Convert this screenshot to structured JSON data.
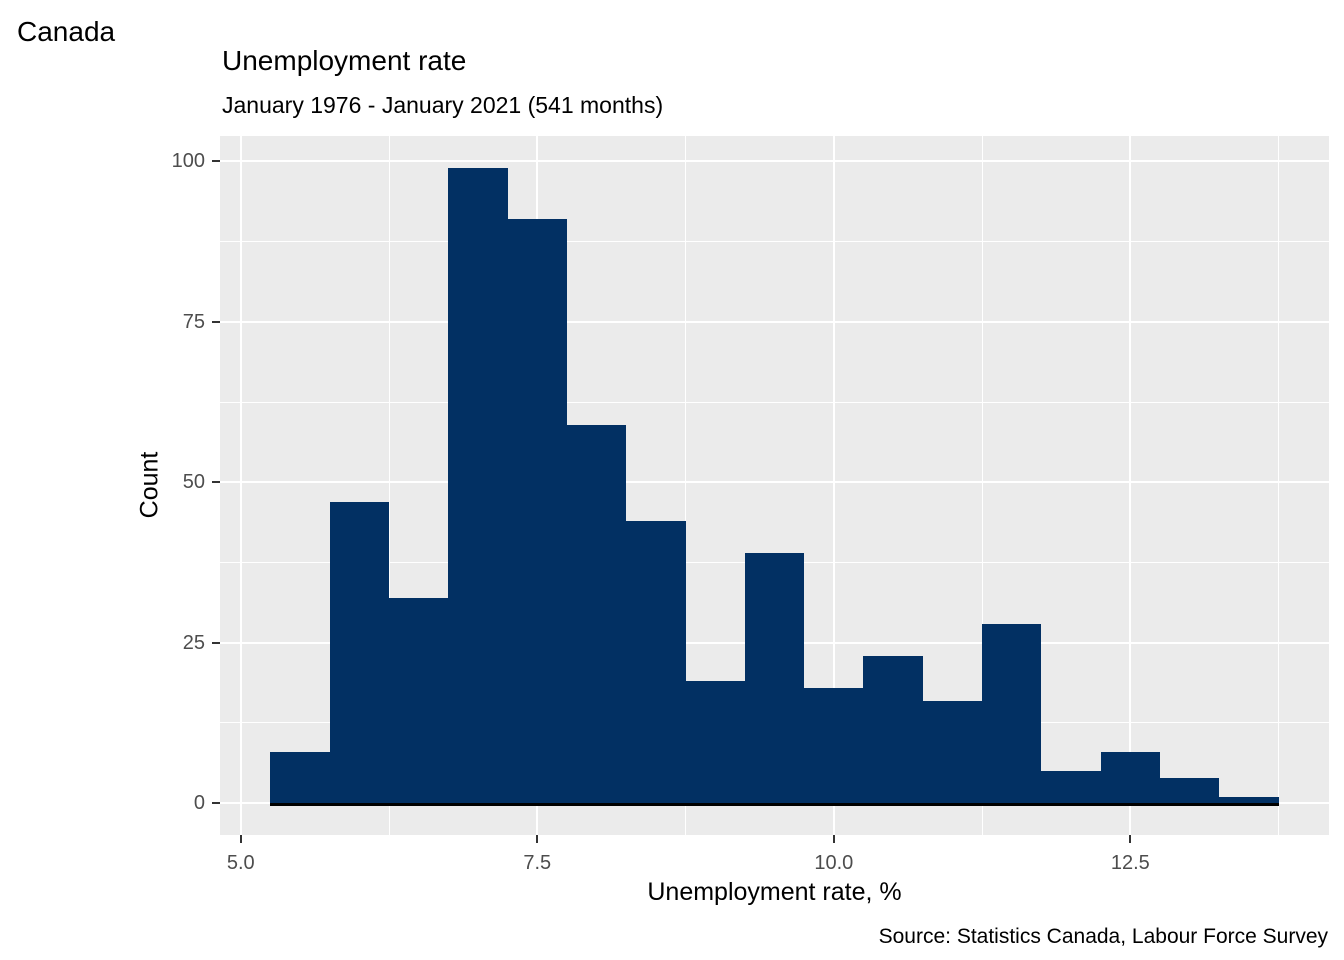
{
  "header": {
    "region_label": "Canada"
  },
  "chart_data": {
    "type": "bar",
    "subtype": "histogram",
    "title": "Unemployment rate",
    "subtitle": "January 1976 - January 2021 (541 months)",
    "caption": "Source: Statistics Canada, Labour Force Survey",
    "xlabel": "Unemployment rate, %",
    "ylabel": "Count",
    "total_months": 541,
    "bin_width": 0.5,
    "bin_edges": [
      5.25,
      5.75,
      6.25,
      6.75,
      7.25,
      7.75,
      8.25,
      8.75,
      9.25,
      9.75,
      10.25,
      10.75,
      11.25,
      11.75,
      12.25,
      12.75,
      13.25,
      13.75
    ],
    "counts": [
      8,
      47,
      32,
      99,
      91,
      59,
      44,
      19,
      39,
      18,
      23,
      16,
      28,
      5,
      8,
      4,
      1
    ],
    "x_ticks": [
      5.0,
      7.5,
      10.0,
      12.5
    ],
    "x_tick_labels": [
      "5.0",
      "7.5",
      "10.0",
      "12.5"
    ],
    "x_minor_gridlines": [
      6.25,
      8.75,
      11.25,
      13.75
    ],
    "y_ticks": [
      0,
      25,
      50,
      75,
      100
    ],
    "y_tick_labels": [
      "0",
      "25",
      "50",
      "75",
      "100"
    ],
    "y_minor_gridlines": [
      12.5,
      37.5,
      62.5,
      87.5
    ],
    "xlim": [
      4.825,
      14.175
    ],
    "ylim": [
      -4.95,
      103.95
    ],
    "grid": true,
    "legend": false,
    "bar_color": "#023063",
    "panel_bg": "#EBEBEB",
    "grid_color": "#FFFFFF",
    "tick_mark_color": "#333333",
    "tick_label_color": "#4D4D4D",
    "baseline_color": "#000000"
  }
}
